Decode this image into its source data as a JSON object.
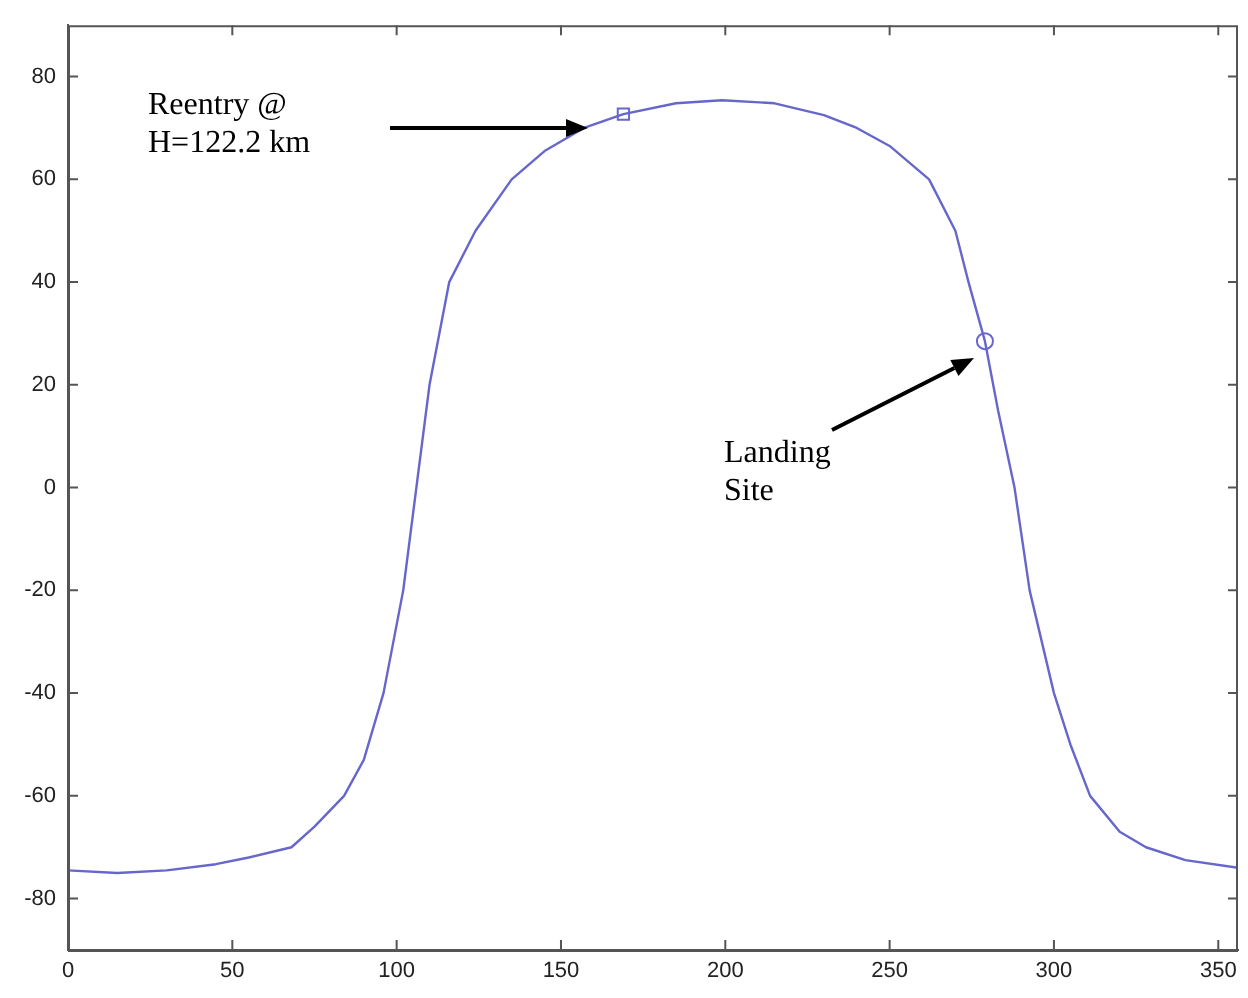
{
  "chart_data": {
    "type": "line",
    "xlim": [
      0,
      356
    ],
    "xticks": [
      0,
      50,
      100,
      150,
      200,
      250,
      300,
      350
    ],
    "ylim": [
      -90,
      90
    ],
    "yticks": [
      -80,
      -60,
      -40,
      -20,
      0,
      20,
      40,
      60,
      80
    ],
    "grid": false,
    "legend": false,
    "line_style": "solid",
    "marker": "none",
    "series": [
      {
        "color": "#6666cc",
        "x": [
          0,
          15,
          30,
          45,
          55,
          68,
          75,
          84,
          90,
          96,
          102,
          106,
          110,
          116,
          124,
          135,
          145,
          157,
          169,
          185,
          199,
          215,
          230,
          240,
          250,
          262,
          270,
          274,
          279,
          283,
          288,
          292.6,
          300,
          305,
          311,
          320,
          328,
          340,
          356
        ],
        "values": [
          -74.5,
          -75,
          -74.5,
          -73.3,
          -72,
          -70,
          -66,
          -60,
          -53,
          -40,
          -20,
          0,
          20,
          40,
          50,
          60,
          65.5,
          70,
          72.7,
          74.8,
          75.4,
          74.8,
          72.5,
          70,
          66.5,
          60,
          50,
          40,
          28.5,
          15,
          0,
          -20,
          -40,
          -50,
          -60,
          -67,
          -70,
          -72.5,
          -74
        ]
      },
      {
        "type": "scatter",
        "marker": "square",
        "color": "#6666cc",
        "x": [
          169
        ],
        "values": [
          72.7
        ]
      },
      {
        "type": "scatter",
        "marker": "circle",
        "color": "#6666cc",
        "x": [
          279
        ],
        "values": [
          28.5
        ]
      }
    ],
    "annotations": [
      "Reentry @\nH=122.2 km",
      "Landing\nSite"
    ]
  }
}
